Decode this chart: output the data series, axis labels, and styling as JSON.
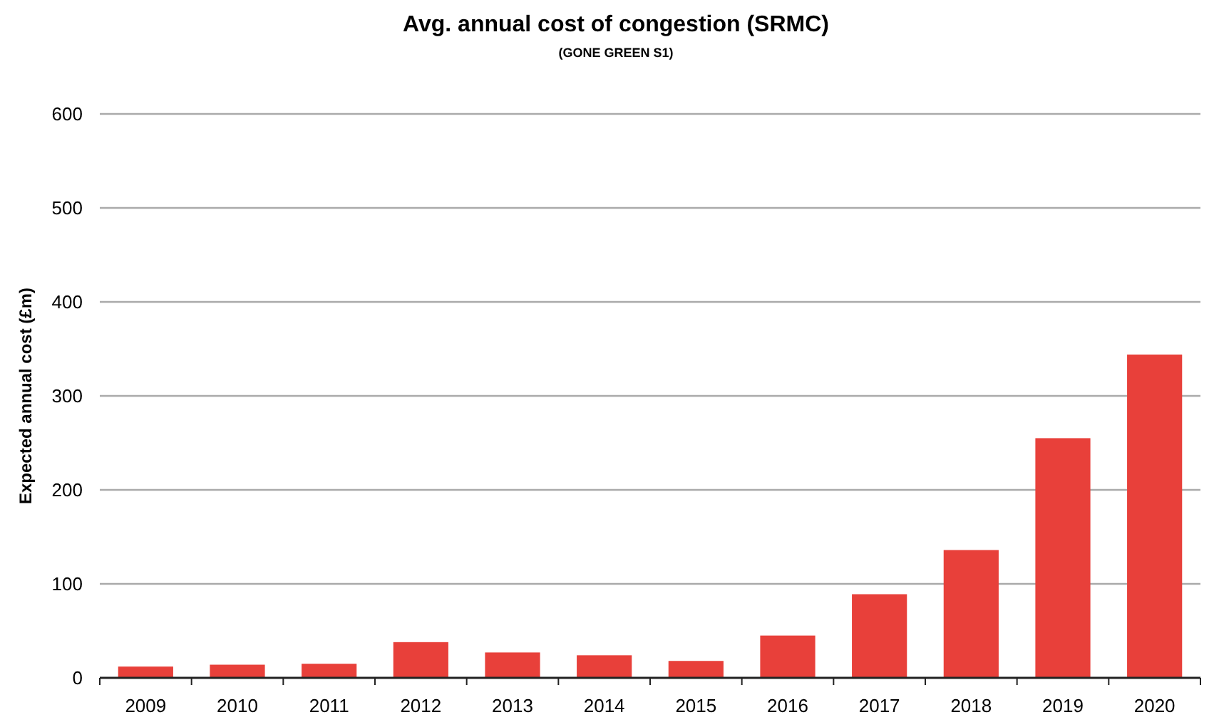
{
  "chart_data": {
    "type": "bar",
    "title": "Avg. annual cost of congestion (SRMC)",
    "subtitle": "(GONE GREEN S1)",
    "ylabel": "Expected annual cost (£m)",
    "categories": [
      "2009",
      "2010",
      "2011",
      "2012",
      "2013",
      "2014",
      "2015",
      "2016",
      "2017",
      "2018",
      "2019",
      "2020"
    ],
    "values": [
      12,
      14,
      15,
      38,
      27,
      24,
      18,
      45,
      89,
      136,
      255,
      344
    ],
    "color": "#e8403a",
    "ylim": [
      0,
      600
    ],
    "yticks": [
      0,
      100,
      200,
      300,
      400,
      500,
      600
    ],
    "grid": "y"
  }
}
